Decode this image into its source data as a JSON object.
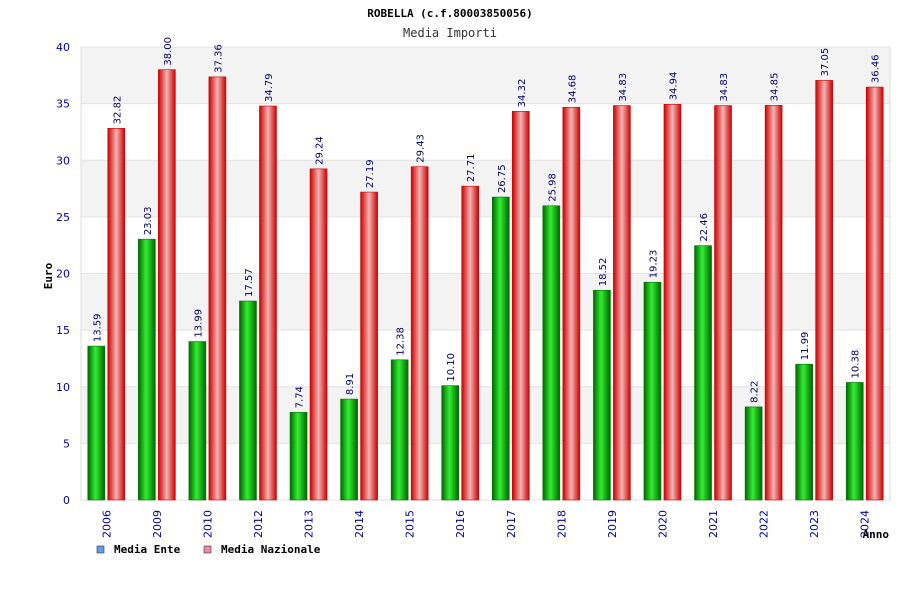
{
  "chart_data": {
    "type": "bar",
    "title": "ROBELLA (c.f.80003850056)",
    "subtitle": "Media Importi",
    "xlabel": "Anno",
    "ylabel": "Euro",
    "ylim": [
      0,
      40
    ],
    "yticks": [
      0,
      5,
      10,
      15,
      20,
      25,
      30,
      35,
      40
    ],
    "categories": [
      "2006",
      "2009",
      "2010",
      "2012",
      "2013",
      "2014",
      "2015",
      "2016",
      "2017",
      "2018",
      "2019",
      "2020",
      "2021",
      "2022",
      "2023",
      "2024"
    ],
    "series": [
      {
        "name": "Media Ente",
        "color": "#00aa00",
        "legend_color": "#6699ee",
        "values": [
          13.59,
          23.03,
          13.99,
          17.57,
          7.74,
          8.91,
          12.38,
          10.1,
          26.75,
          25.98,
          18.52,
          19.23,
          22.46,
          8.22,
          11.99,
          10.38
        ],
        "labels": [
          "13.59",
          "23.03",
          "13.99",
          "17.57",
          "7.74",
          "8.91",
          "12.38",
          "10.10",
          "26.75",
          "25.98",
          "18.52",
          "19.23",
          "22.46",
          "8.22",
          "11.99",
          "10.38"
        ]
      },
      {
        "name": "Media Nazionale",
        "color": "#ee1111",
        "legend_color": "#ee88aa",
        "values": [
          32.82,
          38.0,
          37.36,
          34.79,
          29.24,
          27.19,
          29.43,
          27.71,
          34.32,
          34.68,
          34.83,
          34.94,
          34.83,
          34.85,
          37.05,
          36.46
        ],
        "labels": [
          "32.82",
          "38.00",
          "37.36",
          "34.79",
          "29.24",
          "27.19",
          "29.43",
          "27.71",
          "34.32",
          "34.68",
          "34.83",
          "34.94",
          "34.83",
          "34.85",
          "37.05",
          "36.46"
        ]
      }
    ],
    "grid": true,
    "legend_position": "bottom-left"
  }
}
